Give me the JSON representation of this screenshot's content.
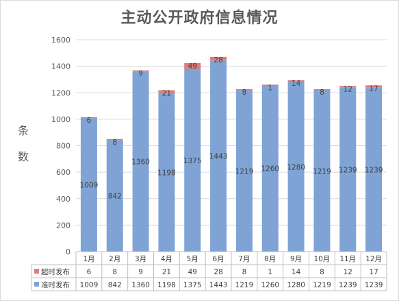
{
  "chart_data": {
    "type": "bar",
    "stacked": true,
    "title": "主动公开政府信息情况",
    "ylabel": "条数",
    "ylim": [
      0,
      1600
    ],
    "yticks": [
      0,
      200,
      400,
      600,
      800,
      1000,
      1200,
      1400,
      1600
    ],
    "grid": true,
    "legend": "data-table",
    "categories": [
      "1月",
      "2月",
      "3月",
      "4月",
      "5月",
      "6月",
      "7月",
      "8月",
      "9月",
      "10月",
      "11月",
      "12月"
    ],
    "series": [
      {
        "name": "准时发布",
        "color": "#7fa3d4",
        "values": [
          1009,
          842,
          1360,
          1198,
          1375,
          1443,
          1219,
          1260,
          1280,
          1219,
          1239,
          1239
        ]
      },
      {
        "name": "超时发布",
        "color": "#e07b7b",
        "values": [
          6,
          8,
          9,
          21,
          49,
          28,
          8,
          1,
          14,
          8,
          12,
          17
        ]
      }
    ]
  }
}
